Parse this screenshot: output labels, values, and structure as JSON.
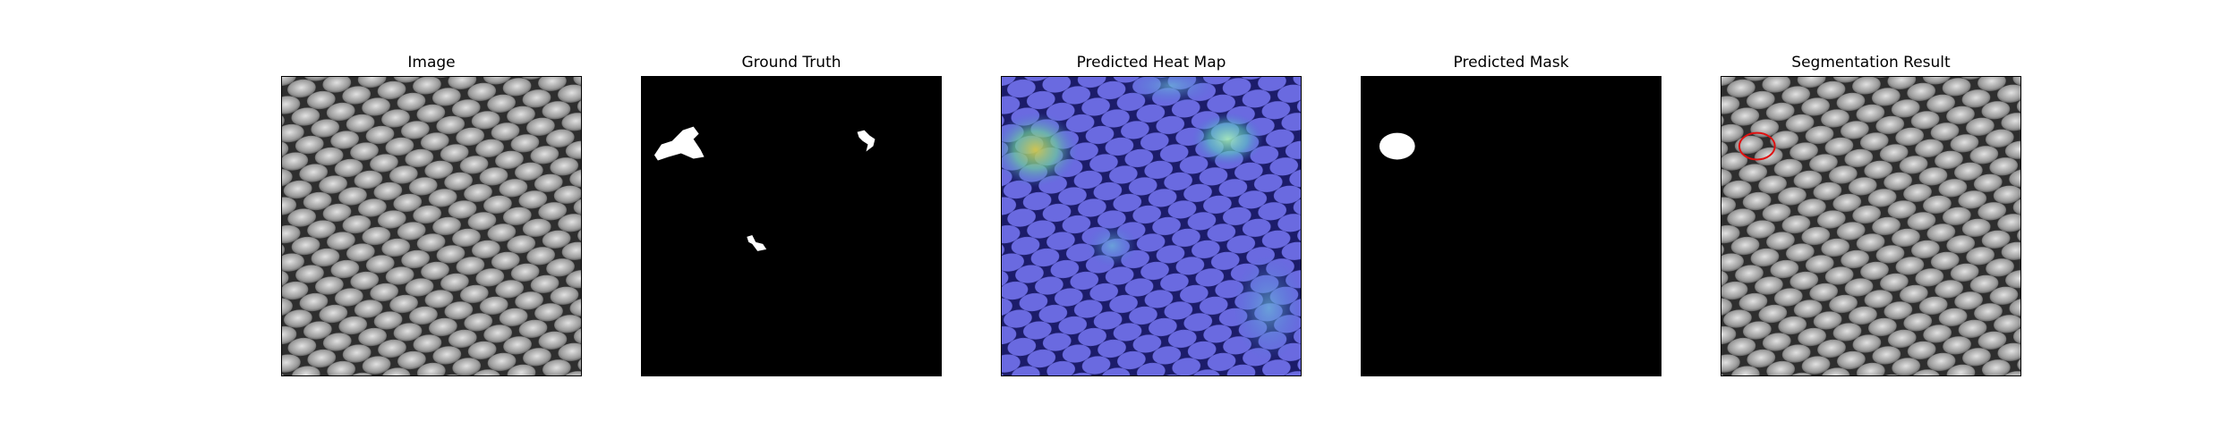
{
  "panels": [
    {
      "title": "Image"
    },
    {
      "title": "Ground Truth"
    },
    {
      "title": "Predicted Heat Map"
    },
    {
      "title": "Predicted Mask"
    },
    {
      "title": "Segmentation Result"
    }
  ],
  "colors": {
    "mesh_light": "#c8c8c8",
    "mesh_dark": "#2e2e2e",
    "mask_fg": "#ffffff",
    "mask_bg": "#000000",
    "heat_low": "#3a3aa8",
    "heat_high": "#b7c85a",
    "outline": "#e01010"
  }
}
